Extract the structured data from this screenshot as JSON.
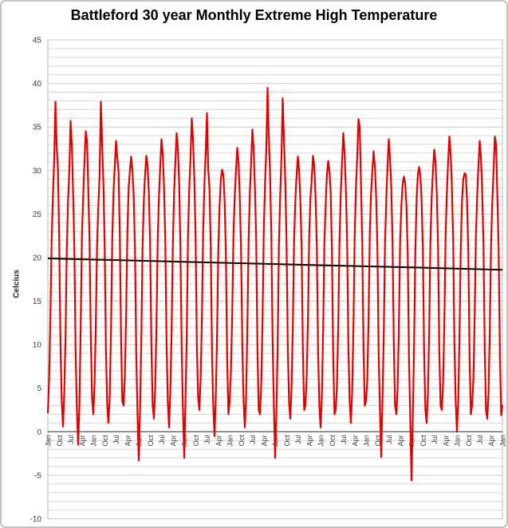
{
  "colors": {
    "background": "#ffffff",
    "frame_border": "#c3c3c3",
    "gridline": "#d6d6d6",
    "gridline_major": "#c9c9c9",
    "plot_border": "#b7b7b7",
    "zero_axis": "#4a4a4a",
    "series": "#e10000",
    "trend": "#000000",
    "label_text": "#3d3d3d",
    "title_text": "#000000"
  },
  "chart_data": {
    "type": "line",
    "title": "Battleford 30 year Monthly Extreme High Temperature",
    "ylabel": "Celcius",
    "xlabel": "",
    "ylim": [
      -10,
      45
    ],
    "y_tick_interval": 5,
    "minor_gridline_interval": 1,
    "grid": true,
    "legend": false,
    "n_points": 361,
    "x_tick_interval": 9,
    "x_tick_labels": [
      "Jan",
      "Oct",
      "Jul",
      "Apr",
      "Jan",
      "Oct",
      "Jul",
      "Apr",
      "Jan",
      "Oct",
      "Jul",
      "Apr",
      "Jan",
      "Oct",
      "Jul",
      "Apr",
      "Jan",
      "Oct",
      "Jul",
      "Apr",
      "Jan",
      "Oct",
      "Jul",
      "Apr",
      "Jan",
      "Oct",
      "Jul",
      "Apr",
      "Jan",
      "Oct",
      "Jul",
      "Apr",
      "Jan",
      "Oct",
      "Jul",
      "Apr",
      "Jan",
      "Oct",
      "Jul",
      "Apr",
      "Jan"
    ],
    "y_tick_labels": [
      "45",
      "40",
      "35",
      "30",
      "25",
      "20",
      "15",
      "10",
      "5",
      "0",
      "-5",
      "-10"
    ],
    "series_name": "Monthly Extreme High Temperature",
    "values": [
      2.2,
      6.0,
      13.0,
      22.0,
      27.0,
      31.0,
      37.9,
      32.8,
      30.2,
      22.0,
      10.0,
      3.5,
      0.6,
      4.5,
      11.0,
      21.0,
      26.5,
      30.0,
      35.7,
      33.0,
      27.5,
      21.0,
      9.0,
      2.5,
      -1.5,
      3.0,
      12.0,
      22.5,
      27.0,
      31.0,
      34.5,
      33.5,
      28.0,
      22.0,
      11.0,
      4.0,
      2.0,
      5.5,
      12.5,
      21.5,
      26.0,
      29.5,
      37.9,
      33.0,
      28.5,
      21.5,
      9.5,
      3.0,
      1.0,
      4.0,
      11.5,
      22.0,
      27.5,
      30.5,
      33.4,
      31.5,
      29.9,
      22.5,
      10.5,
      3.5,
      3.0,
      6.5,
      13.5,
      23.0,
      28.0,
      30.0,
      31.6,
      29.9,
      27.0,
      21.0,
      9.0,
      2.0,
      -3.3,
      2.5,
      10.5,
      21.0,
      26.5,
      29.5,
      31.7,
      30.5,
      27.5,
      21.5,
      10.0,
      3.0,
      1.5,
      5.0,
      12.0,
      22.0,
      27.0,
      30.5,
      33.6,
      32.0,
      28.0,
      22.0,
      10.5,
      3.5,
      0.5,
      4.5,
      11.5,
      21.5,
      27.5,
      31.0,
      34.3,
      32.5,
      28.5,
      21.0,
      9.5,
      2.5,
      -3.0,
      3.5,
      11.0,
      22.5,
      28.0,
      31.5,
      36.0,
      33.5,
      29.0,
      22.5,
      10.0,
      4.0,
      2.5,
      6.0,
      13.0,
      23.0,
      28.5,
      32.0,
      36.6,
      30.1,
      28.0,
      21.5,
      9.0,
      3.0,
      -0.5,
      4.0,
      11.0,
      21.0,
      26.0,
      29.0,
      30.1,
      29.5,
      26.5,
      20.5,
      8.5,
      2.0,
      3.5,
      7.0,
      13.5,
      22.5,
      27.0,
      30.0,
      32.6,
      31.0,
      27.0,
      21.0,
      10.0,
      3.5,
      0.5,
      4.0,
      12.0,
      22.0,
      27.5,
      31.0,
      34.7,
      32.5,
      28.0,
      22.0,
      9.5,
      2.5,
      2.0,
      5.5,
      12.5,
      23.0,
      28.5,
      32.5,
      39.5,
      34.0,
      29.5,
      22.5,
      10.5,
      3.0,
      -3.0,
      2.0,
      10.0,
      21.5,
      27.0,
      31.5,
      38.3,
      33.5,
      29.0,
      22.0,
      10.0,
      3.5,
      1.5,
      5.0,
      12.0,
      22.0,
      26.5,
      29.5,
      31.6,
      30.0,
      26.5,
      21.0,
      9.0,
      2.5,
      3.0,
      6.5,
      13.0,
      22.5,
      27.0,
      29.0,
      31.7,
      30.5,
      27.0,
      21.5,
      9.5,
      3.0,
      0.5,
      4.0,
      11.5,
      21.5,
      26.0,
      29.5,
      31.1,
      30.0,
      27.5,
      20.5,
      8.5,
      2.0,
      2.5,
      5.5,
      12.5,
      22.0,
      27.5,
      31.0,
      34.3,
      32.0,
      28.0,
      22.0,
      10.0,
      3.5,
      1.0,
      4.5,
      12.0,
      22.5,
      28.0,
      31.5,
      35.9,
      35.0,
      28.5,
      21.5,
      9.5,
      3.0,
      3.5,
      6.0,
      13.0,
      23.0,
      27.5,
      30.0,
      32.2,
      30.5,
      27.0,
      21.0,
      9.0,
      2.5,
      -2.9,
      3.5,
      11.0,
      21.5,
      26.5,
      30.5,
      33.6,
      31.5,
      28.0,
      21.5,
      10.0,
      3.0,
      2.0,
      5.0,
      12.0,
      22.0,
      26.0,
      28.5,
      29.3,
      28.5,
      26.0,
      20.5,
      8.5,
      1.5,
      -5.6,
      1.5,
      9.5,
      20.5,
      26.5,
      29.5,
      30.4,
      29.5,
      26.5,
      21.0,
      9.0,
      2.5,
      1.0,
      4.5,
      11.5,
      22.0,
      27.0,
      30.0,
      32.4,
      31.0,
      27.5,
      21.5,
      9.5,
      3.0,
      2.5,
      5.5,
      12.5,
      22.5,
      27.5,
      31.0,
      33.9,
      32.0,
      28.0,
      22.0,
      10.0,
      3.5,
      0.0,
      3.5,
      11.0,
      21.0,
      26.5,
      29.0,
      29.7,
      29.5,
      26.5,
      20.5,
      8.5,
      2.0,
      3.0,
      6.0,
      13.0,
      22.5,
      27.0,
      30.5,
      33.4,
      31.5,
      27.5,
      21.5,
      9.5,
      2.5,
      1.5,
      4.5,
      11.5,
      21.5,
      26.5,
      30.0,
      33.9,
      33.0,
      27.0,
      21.0,
      9.0,
      1.9,
      3.0
    ],
    "trendline": {
      "start_value": 19.9,
      "end_value": 18.6
    }
  }
}
